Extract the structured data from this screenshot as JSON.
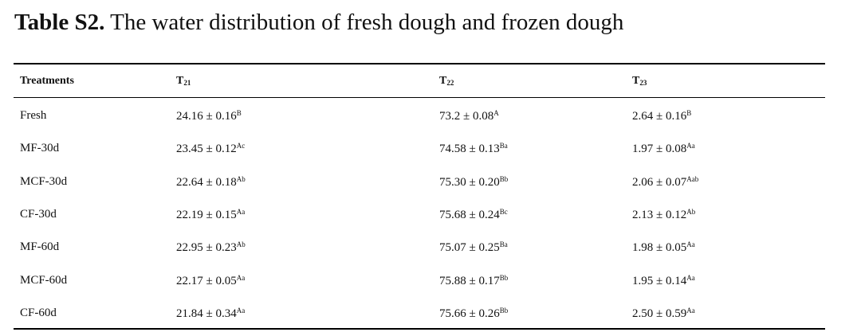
{
  "title": {
    "label": "Table S2.",
    "text": "The water distribution of fresh dough and frozen dough"
  },
  "table": {
    "header": [
      {
        "main": "Treatments"
      },
      {
        "main": "T",
        "sub": "21"
      },
      {
        "main": "T",
        "sub": "22"
      },
      {
        "main": "T",
        "sub": "23"
      }
    ],
    "rows": [
      [
        {
          "value": "Fresh"
        },
        {
          "value": "24.16 ± 0.16",
          "sup": "B"
        },
        {
          "value": "73.2 ± 0.08",
          "sup": "A"
        },
        {
          "value": "2.64 ± 0.16",
          "sup": "B"
        }
      ],
      [
        {
          "value": "MF-30d"
        },
        {
          "value": "23.45 ± 0.12",
          "sup": "Ac"
        },
        {
          "value": "74.58 ± 0.13",
          "sup": "Ba"
        },
        {
          "value": "1.97 ± 0.08",
          "sup": "Aa"
        }
      ],
      [
        {
          "value": "MCF-30d"
        },
        {
          "value": "22.64 ± 0.18",
          "sup": "Ab"
        },
        {
          "value": "75.30 ± 0.20",
          "sup": "Bb"
        },
        {
          "value": "2.06 ± 0.07",
          "sup": "Aab"
        }
      ],
      [
        {
          "value": "CF-30d"
        },
        {
          "value": "22.19 ± 0.15",
          "sup": "Aa"
        },
        {
          "value": "75.68 ± 0.24",
          "sup": "Bc"
        },
        {
          "value": "2.13 ± 0.12",
          "sup": "Ab"
        }
      ],
      [
        {
          "value": "MF-60d"
        },
        {
          "value": "22.95 ± 0.23",
          "sup": "Ab"
        },
        {
          "value": "75.07 ± 0.25",
          "sup": "Ba"
        },
        {
          "value": "1.98 ± 0.05",
          "sup": "Aa"
        }
      ],
      [
        {
          "value": "MCF-60d"
        },
        {
          "value": "22.17 ± 0.05",
          "sup": "Aa"
        },
        {
          "value": "75.88 ± 0.17",
          "sup": "Bb"
        },
        {
          "value": "1.95 ± 0.14",
          "sup": "Aa"
        }
      ],
      [
        {
          "value": "CF-60d"
        },
        {
          "value": "21.84 ± 0.34",
          "sup": "Aa"
        },
        {
          "value": "75.66 ± 0.26",
          "sup": "Bb"
        },
        {
          "value": "2.50 ± 0.59",
          "sup": "Aa"
        }
      ]
    ]
  }
}
